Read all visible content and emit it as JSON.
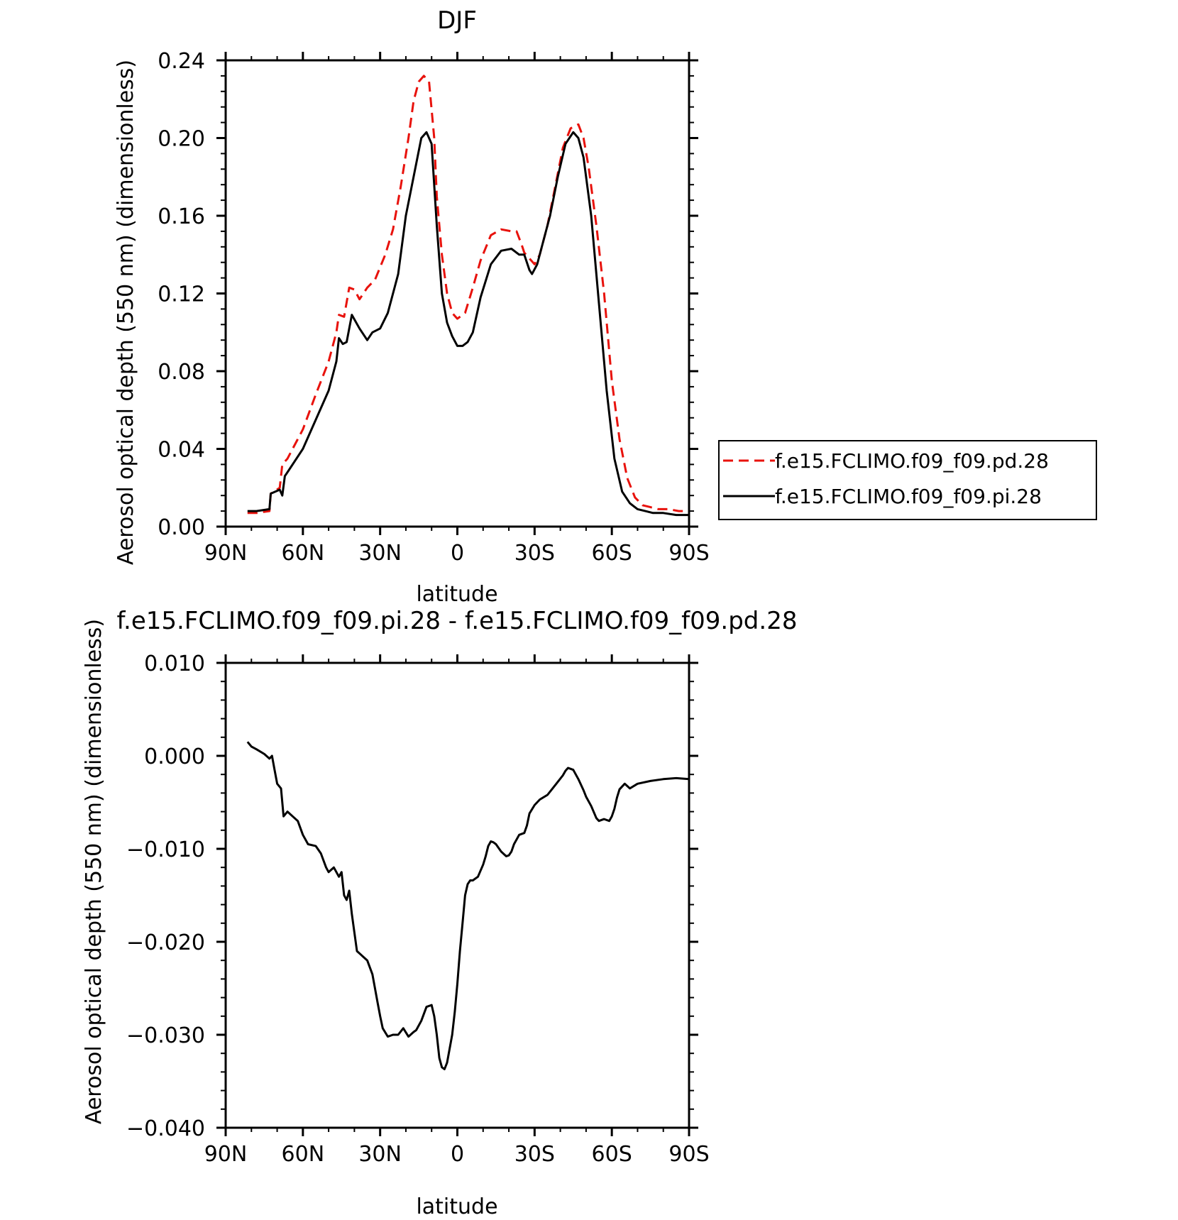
{
  "chart_data": [
    {
      "type": "line",
      "title": "DJF",
      "xlabel": "latitude",
      "ylabel": "Aerosol optical depth (550 nm) (dimensionless)",
      "xlim": [
        90,
        -90
      ],
      "ylim": [
        0.0,
        0.24
      ],
      "x_tick_values": [
        90,
        60,
        30,
        0,
        -30,
        -60,
        -90
      ],
      "x_tick_labels": [
        "90N",
        "60N",
        "30N",
        "0",
        "30S",
        "60S",
        "90S"
      ],
      "y_tick_values": [
        0.0,
        0.04,
        0.08,
        0.12,
        0.16,
        0.2,
        0.24
      ],
      "y_tick_labels": [
        "0.00",
        "0.04",
        "0.08",
        "0.12",
        "0.16",
        "0.20",
        "0.24"
      ],
      "grid": false,
      "legend": {
        "placement": "right",
        "entries": [
          {
            "name": "f.e15.FCLIMO.f09_f09.pd.28",
            "style": "dashed",
            "color": "#e8120c"
          },
          {
            "name": "f.e15.FCLIMO.f09_f09.pi.28",
            "style": "solid",
            "color": "#000000"
          }
        ]
      },
      "series": [
        {
          "name": "f.e15.FCLIMO.f09_f09.pd.28",
          "style": "dashed",
          "color": "#e8120c",
          "x": [
            81.5,
            78,
            73,
            72.5,
            69,
            68,
            66,
            60,
            55,
            50,
            47,
            46,
            44,
            42,
            40,
            38,
            35,
            32,
            28,
            25,
            22,
            19,
            17,
            15,
            13,
            11,
            9,
            8,
            6,
            4,
            2,
            0,
            -3,
            -6,
            -9,
            -13,
            -17,
            -21,
            -23,
            -25,
            -26,
            -28,
            -30,
            -32,
            -35,
            -38,
            -41,
            -44,
            -47,
            -49,
            -51,
            -54,
            -57,
            -60,
            -63,
            -66,
            -69,
            -72,
            -75,
            -78,
            -82,
            -86,
            -90
          ],
          "y": [
            0.007,
            0.007,
            0.008,
            0.017,
            0.02,
            0.032,
            0.035,
            0.05,
            0.068,
            0.085,
            0.1,
            0.109,
            0.108,
            0.123,
            0.122,
            0.117,
            0.123,
            0.127,
            0.14,
            0.153,
            0.175,
            0.2,
            0.219,
            0.229,
            0.232,
            0.229,
            0.2,
            0.17,
            0.14,
            0.12,
            0.11,
            0.107,
            0.11,
            0.123,
            0.137,
            0.15,
            0.153,
            0.152,
            0.152,
            0.145,
            0.141,
            0.138,
            0.135,
            0.14,
            0.155,
            0.175,
            0.195,
            0.205,
            0.207,
            0.2,
            0.185,
            0.155,
            0.12,
            0.075,
            0.045,
            0.025,
            0.015,
            0.011,
            0.01,
            0.009,
            0.009,
            0.008,
            0.008
          ]
        },
        {
          "name": "f.e15.FCLIMO.f09_f09.pi.28",
          "style": "solid",
          "color": "#000000",
          "x": [
            81.5,
            78,
            73,
            72.5,
            69,
            68,
            67,
            66,
            60,
            55,
            50,
            47,
            46,
            44.5,
            43,
            41,
            38,
            35,
            33,
            30,
            27,
            23,
            20,
            17,
            14,
            12,
            10,
            8,
            6,
            4,
            2,
            0,
            -2,
            -4,
            -6,
            -9,
            -13,
            -17,
            -21,
            -24,
            -26,
            -28,
            -29,
            -31,
            -33,
            -36,
            -39,
            -42,
            -45,
            -47,
            -49,
            -52,
            -55,
            -58,
            -61,
            -64,
            -67,
            -70,
            -73,
            -76,
            -80,
            -85,
            -90
          ],
          "y": [
            0.008,
            0.008,
            0.009,
            0.017,
            0.019,
            0.016,
            0.026,
            0.028,
            0.04,
            0.055,
            0.07,
            0.085,
            0.097,
            0.094,
            0.095,
            0.109,
            0.102,
            0.096,
            0.1,
            0.102,
            0.11,
            0.13,
            0.16,
            0.18,
            0.2,
            0.203,
            0.197,
            0.155,
            0.12,
            0.105,
            0.098,
            0.093,
            0.093,
            0.095,
            0.1,
            0.118,
            0.135,
            0.142,
            0.143,
            0.14,
            0.14,
            0.132,
            0.13,
            0.135,
            0.145,
            0.16,
            0.18,
            0.197,
            0.203,
            0.2,
            0.19,
            0.16,
            0.115,
            0.07,
            0.035,
            0.018,
            0.012,
            0.009,
            0.008,
            0.007,
            0.007,
            0.006,
            0.006
          ]
        }
      ]
    },
    {
      "type": "line",
      "title": "f.e15.FCLIMO.f09_f09.pi.28 - f.e15.FCLIMO.f09_f09.pd.28",
      "xlabel": "latitude",
      "ylabel": "Aerosol optical depth (550 nm) (dimensionless)",
      "xlim": [
        90,
        -90
      ],
      "ylim": [
        -0.04,
        0.01
      ],
      "x_tick_values": [
        90,
        60,
        30,
        0,
        -30,
        -60,
        -90
      ],
      "x_tick_labels": [
        "90N",
        "60N",
        "30N",
        "0",
        "30S",
        "60S",
        "90S"
      ],
      "y_tick_values": [
        0.01,
        0.0,
        -0.01,
        -0.02,
        -0.03,
        -0.04
      ],
      "y_tick_labels": [
        "0.010",
        "0.000",
        "−0.010",
        "−0.020",
        "−0.030",
        "−0.040"
      ],
      "grid": false,
      "series": [
        {
          "style": "solid",
          "color": "#000000",
          "x": [
            81.5,
            80,
            78,
            75,
            73,
            72,
            71,
            70,
            68.5,
            67.5,
            66,
            64,
            62,
            60,
            58,
            55,
            53,
            51,
            50,
            48,
            46,
            45,
            44,
            43,
            42,
            41,
            40,
            39,
            37,
            35,
            33,
            31,
            30,
            29,
            27,
            25,
            23,
            21,
            19,
            17,
            16,
            14,
            12,
            10,
            9,
            8,
            7,
            6,
            5,
            4,
            3,
            2,
            1,
            0,
            -1,
            -2,
            -3,
            -4,
            -5,
            -6,
            -8,
            -10,
            -11,
            -12,
            -13,
            -14,
            -15,
            -17,
            -19,
            -20,
            -21,
            -22,
            -24,
            -26,
            -27,
            -28,
            -30,
            -32,
            -35,
            -37,
            -39,
            -41,
            -42,
            -43,
            -44,
            -45,
            -47,
            -49,
            -50,
            -52,
            -54,
            -55,
            -57,
            -59,
            -60,
            -61,
            -62,
            -63,
            -65,
            -67,
            -70,
            -75,
            -80,
            -85,
            -90
          ],
          "y": [
            0.0015,
            0.001,
            0.0007,
            0.0002,
            -0.0003,
            0.0,
            -0.0015,
            -0.003,
            -0.0035,
            -0.0065,
            -0.006,
            -0.0065,
            -0.007,
            -0.0085,
            -0.0095,
            -0.0097,
            -0.0105,
            -0.012,
            -0.0125,
            -0.012,
            -0.013,
            -0.0125,
            -0.015,
            -0.0155,
            -0.0145,
            -0.017,
            -0.019,
            -0.021,
            -0.0215,
            -0.022,
            -0.0235,
            -0.0265,
            -0.028,
            -0.0293,
            -0.0302,
            -0.03,
            -0.03,
            -0.0293,
            -0.0302,
            -0.0297,
            -0.0295,
            -0.0285,
            -0.027,
            -0.0268,
            -0.028,
            -0.03,
            -0.0325,
            -0.0335,
            -0.0337,
            -0.033,
            -0.0315,
            -0.03,
            -0.0275,
            -0.0245,
            -0.021,
            -0.018,
            -0.015,
            -0.0138,
            -0.0134,
            -0.0134,
            -0.013,
            -0.0117,
            -0.0108,
            -0.0097,
            -0.0092,
            -0.0093,
            -0.0095,
            -0.0103,
            -0.0108,
            -0.0107,
            -0.0103,
            -0.0095,
            -0.0085,
            -0.0083,
            -0.0075,
            -0.0062,
            -0.0053,
            -0.0047,
            -0.0042,
            -0.0035,
            -0.0028,
            -0.0021,
            -0.0016,
            -0.0013,
            -0.0014,
            -0.0015,
            -0.0025,
            -0.0037,
            -0.0044,
            -0.0054,
            -0.0067,
            -0.007,
            -0.0068,
            -0.007,
            -0.0065,
            -0.0057,
            -0.0045,
            -0.0036,
            -0.003,
            -0.0035,
            -0.003,
            -0.0027,
            -0.0025,
            -0.0024,
            -0.0025
          ]
        }
      ]
    }
  ]
}
